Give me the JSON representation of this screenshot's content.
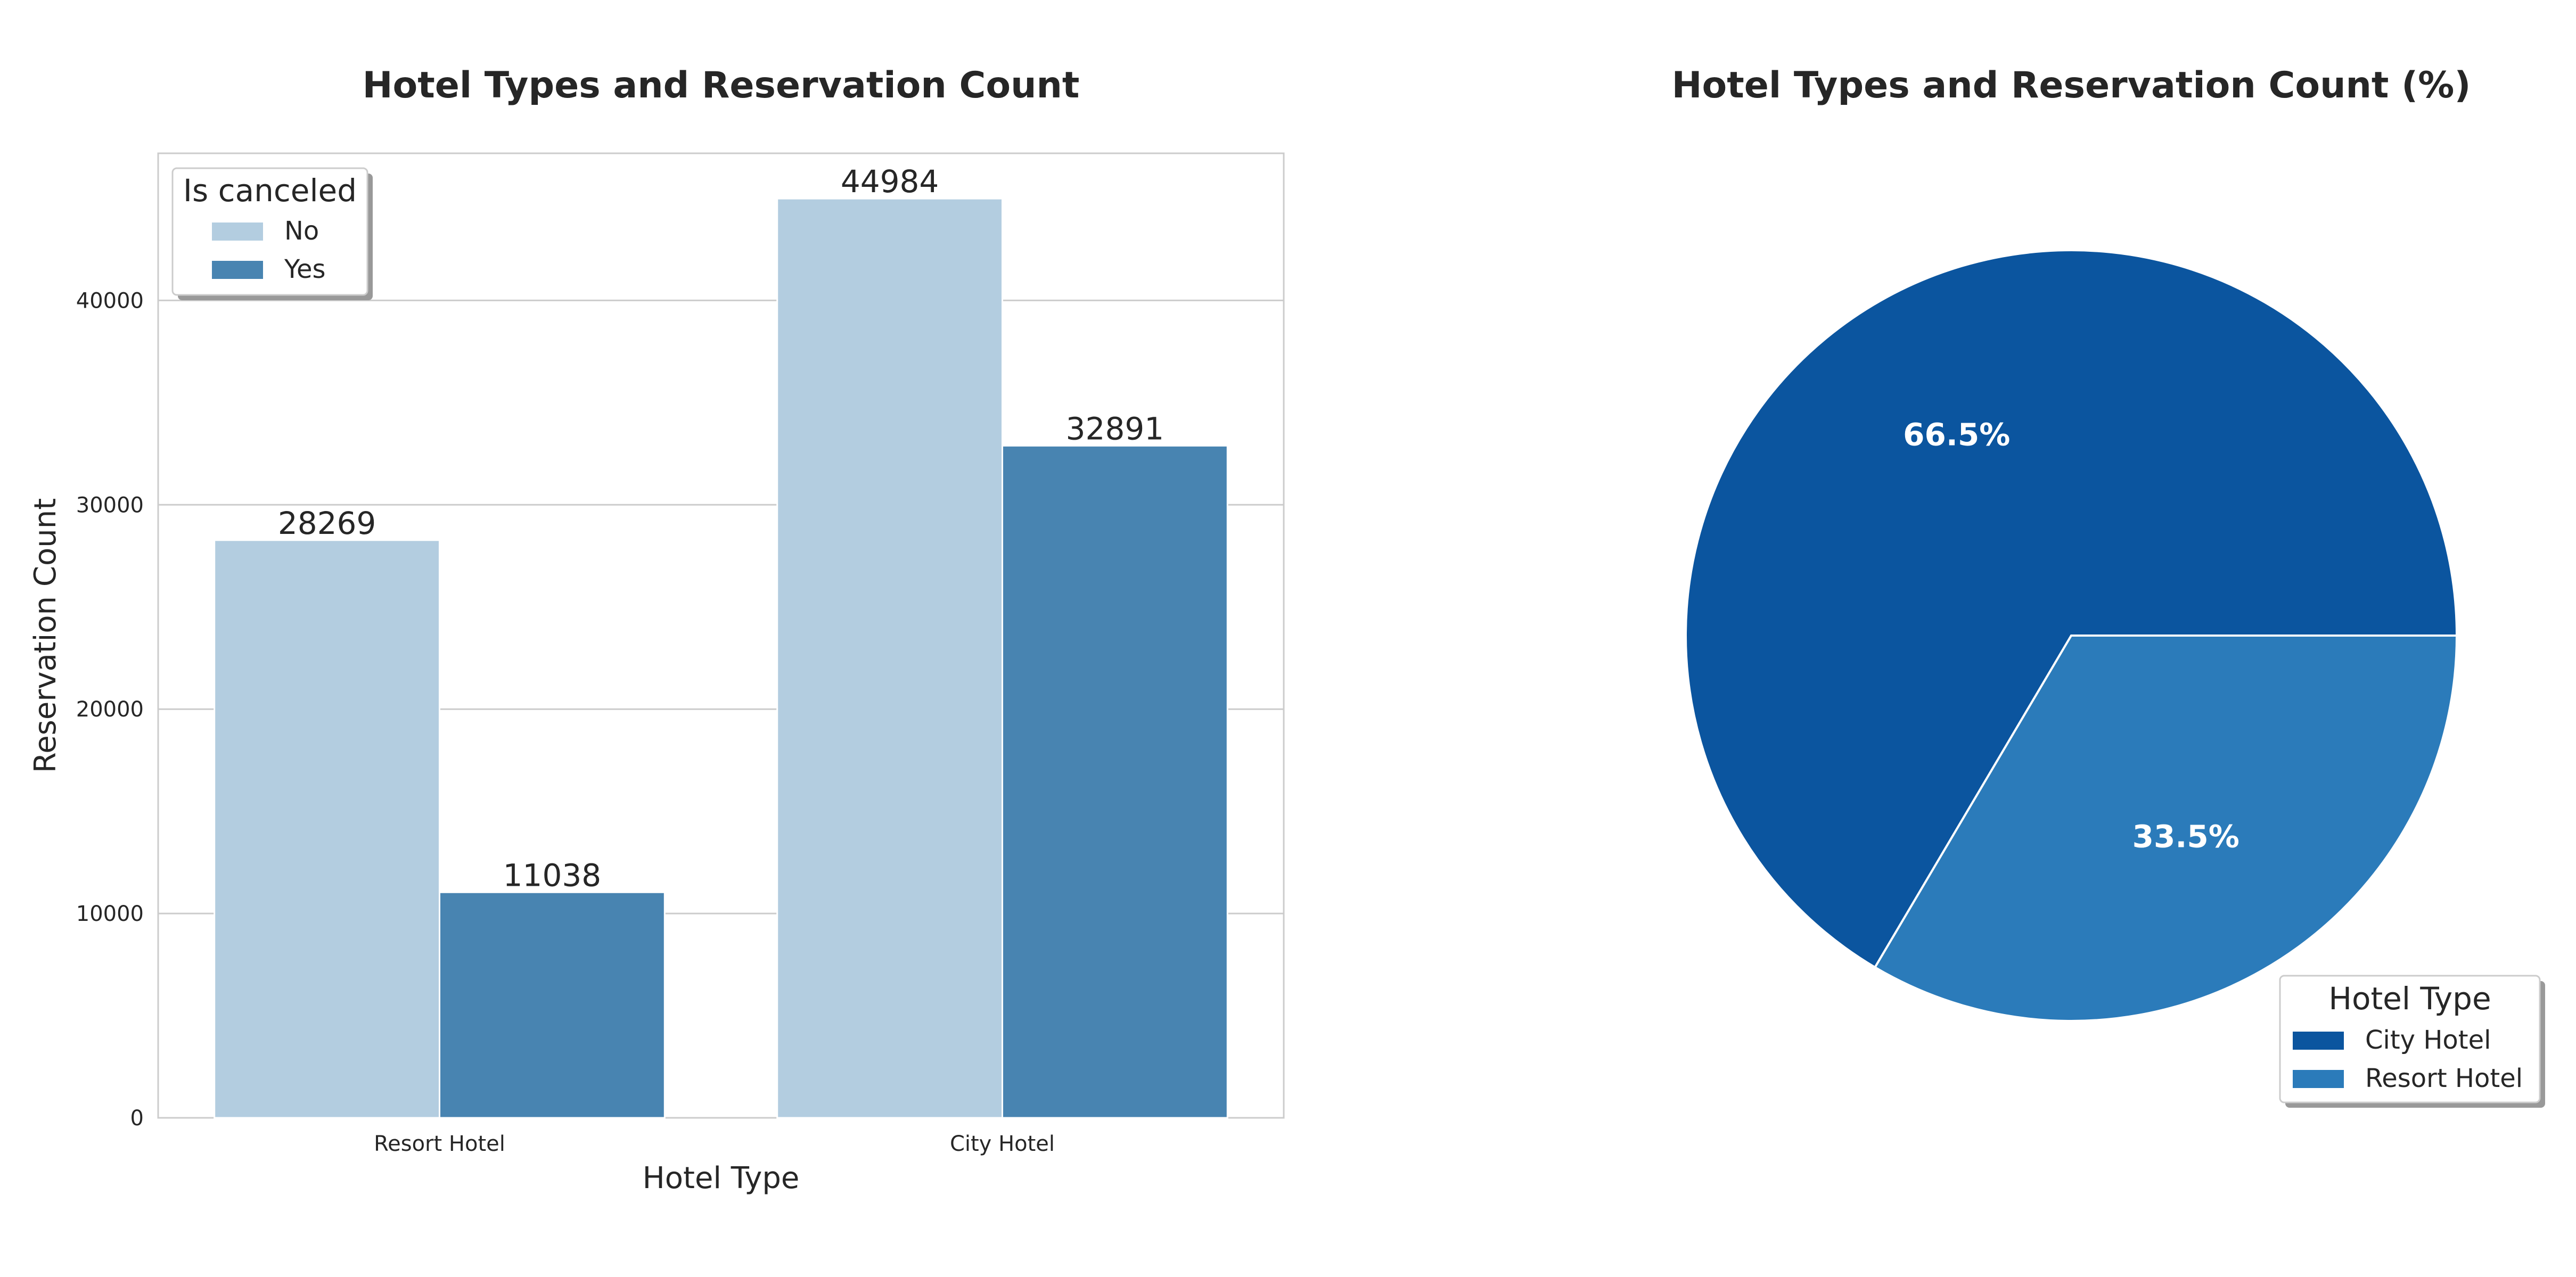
{
  "chart_data": [
    {
      "type": "bar",
      "title": "Hotel Types and Reservation Count",
      "xlabel": "Hotel Type",
      "ylabel": "Reservation Count",
      "categories": [
        "Resort Hotel",
        "City Hotel"
      ],
      "series": [
        {
          "name": "No",
          "values": [
            28269,
            44984
          ],
          "color": "#b3cde0"
        },
        {
          "name": "Yes",
          "values": [
            11038,
            32891
          ],
          "color": "#4884b1"
        }
      ],
      "ylim": [
        0,
        47200
      ],
      "yticks": [
        0,
        10000,
        20000,
        30000,
        40000
      ],
      "grid": true,
      "legend": {
        "title": "Is canceled",
        "position": "upper-left"
      }
    },
    {
      "type": "pie",
      "title": "Hotel Types and Reservation Count (%)",
      "slices": [
        {
          "label": "City Hotel",
          "value": 66.5,
          "display": "66.5%",
          "color": "#0b559f"
        },
        {
          "label": "Resort Hotel",
          "value": 33.5,
          "display": "33.5%",
          "color": "#2b7bba"
        }
      ],
      "legend": {
        "title": "Hotel Type",
        "position": "lower-right"
      }
    }
  ]
}
